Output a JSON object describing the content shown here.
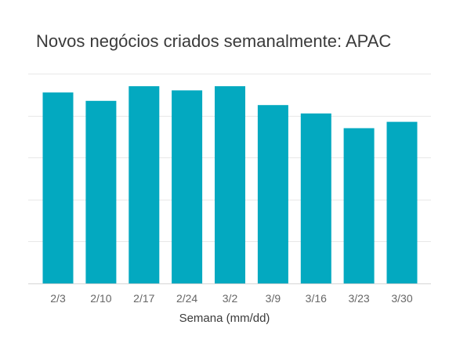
{
  "chart_data": {
    "type": "bar",
    "title": "Novos negócios criados semanalmente: APAC",
    "xlabel": "Semana (mm/dd)",
    "ylabel": "",
    "categories": [
      "2/3",
      "2/10",
      "2/17",
      "2/24",
      "3/2",
      "3/9",
      "3/16",
      "3/23",
      "3/30"
    ],
    "values": [
      91,
      87,
      94,
      92,
      94,
      85,
      81,
      74,
      77
    ],
    "ylim": [
      0,
      100
    ],
    "grid": true,
    "ytick_labels_shown": false,
    "bar_color": "#03A9C0",
    "grid_color": "#E8E8E8",
    "axis_color": "#D5D5D5",
    "tick_label_color": "#666666"
  }
}
